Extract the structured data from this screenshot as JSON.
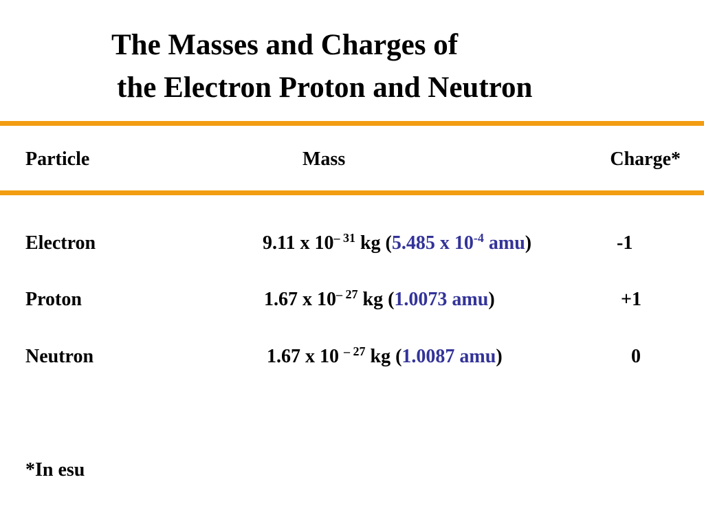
{
  "title": {
    "line1": "The Masses and Charges of",
    "line2": "the Electron Proton and Neutron"
  },
  "table": {
    "header": {
      "particle": "Particle",
      "mass": "Mass",
      "charge": "Charge*"
    },
    "rows": [
      {
        "particle": "Electron",
        "charge": "-1",
        "mass": [
          {
            "text": "9.11 x 10"
          },
          {
            "text": "– 31",
            "sup": true
          },
          {
            "text": " kg ("
          },
          {
            "text": "5.485 x 10",
            "color": "#333399"
          },
          {
            "text": "-4",
            "sup": true,
            "color": "#333399"
          },
          {
            "text": " amu",
            "color": "#333399"
          },
          {
            "text": ")"
          }
        ]
      },
      {
        "particle": "Proton",
        "charge": "+1",
        "mass": [
          {
            "text": "1.67 x 10"
          },
          {
            "text": "– 27",
            "sup": true
          },
          {
            "text": " kg ("
          },
          {
            "text": "1.0073 amu",
            "color": "#333399"
          },
          {
            "text": ")"
          }
        ]
      },
      {
        "particle": "Neutron",
        "charge": "0",
        "mass": [
          {
            "text": "1.67 x 10 "
          },
          {
            "text": "– 27",
            "sup": true
          },
          {
            "text": " kg ("
          },
          {
            "text": "1.0087 amu",
            "color": "#333399"
          },
          {
            "text": ")"
          }
        ]
      }
    ]
  },
  "footnote": "*In esu"
}
